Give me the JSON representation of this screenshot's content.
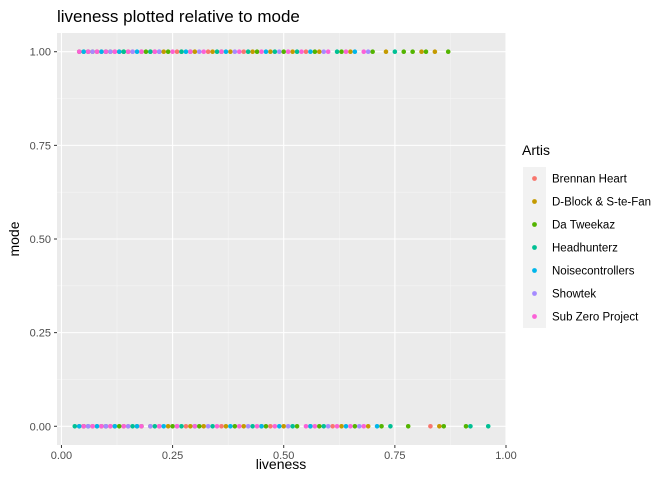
{
  "chart_data": {
    "type": "scatter",
    "title": "liveness plotted relative to mode",
    "xlabel": "liveness",
    "ylabel": "mode",
    "xlim": [
      -0.01,
      1.0
    ],
    "ylim": [
      -0.05,
      1.05
    ],
    "x_ticks": [
      0,
      0.25,
      0.5,
      0.75,
      1.0
    ],
    "x_tick_labels": [
      "0.00",
      "0.25",
      "0.50",
      "0.75",
      "1.00"
    ],
    "y_ticks": [
      0,
      0.25,
      0.5,
      0.75,
      1.0
    ],
    "y_tick_labels": [
      "0.00",
      "0.25",
      "0.50",
      "0.75",
      "1.00"
    ],
    "grid": true,
    "legend": {
      "title": "Artis",
      "position": "right"
    },
    "series": [
      {
        "name": "Brennan Heart",
        "color": "#F8766D",
        "points": [
          [
            0.06,
            1
          ],
          [
            0.09,
            1
          ],
          [
            0.12,
            1
          ],
          [
            0.16,
            1
          ],
          [
            0.21,
            1
          ],
          [
            0.26,
            1
          ],
          [
            0.33,
            1
          ],
          [
            0.41,
            1
          ],
          [
            0.55,
            1
          ],
          [
            0.05,
            0
          ],
          [
            0.08,
            0
          ],
          [
            0.11,
            0
          ],
          [
            0.15,
            0
          ],
          [
            0.22,
            0
          ],
          [
            0.28,
            0
          ],
          [
            0.36,
            0
          ],
          [
            0.47,
            0
          ],
          [
            0.61,
            0
          ],
          [
            0.83,
            0
          ]
        ]
      },
      {
        "name": "D-Block & S-te-Fan",
        "color": "#C49A00",
        "points": [
          [
            0.05,
            1
          ],
          [
            0.08,
            1
          ],
          [
            0.1,
            1
          ],
          [
            0.13,
            1
          ],
          [
            0.15,
            1
          ],
          [
            0.18,
            1
          ],
          [
            0.2,
            1
          ],
          [
            0.23,
            1
          ],
          [
            0.27,
            1
          ],
          [
            0.3,
            1
          ],
          [
            0.34,
            1
          ],
          [
            0.38,
            1
          ],
          [
            0.43,
            1
          ],
          [
            0.47,
            1
          ],
          [
            0.52,
            1
          ],
          [
            0.58,
            1
          ],
          [
            0.65,
            1
          ],
          [
            0.73,
            1
          ],
          [
            0.81,
            1
          ],
          [
            0.84,
            1
          ],
          [
            0.04,
            0
          ],
          [
            0.07,
            0
          ],
          [
            0.1,
            0
          ],
          [
            0.12,
            0
          ],
          [
            0.14,
            0
          ],
          [
            0.17,
            0
          ],
          [
            0.2,
            0
          ],
          [
            0.24,
            0
          ],
          [
            0.29,
            0
          ],
          [
            0.32,
            0
          ],
          [
            0.37,
            0
          ],
          [
            0.41,
            0
          ],
          [
            0.45,
            0
          ],
          [
            0.5,
            0
          ],
          [
            0.56,
            0
          ],
          [
            0.63,
            0
          ],
          [
            0.69,
            0
          ],
          [
            0.85,
            0
          ]
        ]
      },
      {
        "name": "Da Tweekaz",
        "color": "#53B400",
        "points": [
          [
            0.04,
            1
          ],
          [
            0.07,
            1
          ],
          [
            0.11,
            1
          ],
          [
            0.14,
            1
          ],
          [
            0.19,
            1
          ],
          [
            0.24,
            1
          ],
          [
            0.29,
            1
          ],
          [
            0.36,
            1
          ],
          [
            0.44,
            1
          ],
          [
            0.5,
            1
          ],
          [
            0.57,
            1
          ],
          [
            0.63,
            1
          ],
          [
            0.7,
            1
          ],
          [
            0.77,
            1
          ],
          [
            0.79,
            1
          ],
          [
            0.82,
            1
          ],
          [
            0.87,
            1
          ],
          [
            0.05,
            0
          ],
          [
            0.09,
            0
          ],
          [
            0.13,
            0
          ],
          [
            0.18,
            0
          ],
          [
            0.25,
            0
          ],
          [
            0.31,
            0
          ],
          [
            0.39,
            0
          ],
          [
            0.46,
            0
          ],
          [
            0.53,
            0
          ],
          [
            0.58,
            0
          ],
          [
            0.66,
            0
          ],
          [
            0.72,
            0
          ],
          [
            0.78,
            0
          ],
          [
            0.86,
            0
          ],
          [
            0.91,
            0
          ]
        ]
      },
      {
        "name": "Headhunterz",
        "color": "#00C094",
        "points": [
          [
            0.06,
            1
          ],
          [
            0.1,
            1
          ],
          [
            0.14,
            1
          ],
          [
            0.2,
            1
          ],
          [
            0.27,
            1
          ],
          [
            0.35,
            1
          ],
          [
            0.42,
            1
          ],
          [
            0.48,
            1
          ],
          [
            0.53,
            1
          ],
          [
            0.62,
            1
          ],
          [
            0.75,
            1
          ],
          [
            0.03,
            0
          ],
          [
            0.06,
            0
          ],
          [
            0.1,
            0
          ],
          [
            0.16,
            0
          ],
          [
            0.21,
            0
          ],
          [
            0.27,
            0
          ],
          [
            0.34,
            0
          ],
          [
            0.43,
            0
          ],
          [
            0.52,
            0
          ],
          [
            0.59,
            0
          ],
          [
            0.74,
            0
          ],
          [
            0.92,
            0
          ],
          [
            0.96,
            0
          ]
        ]
      },
      {
        "name": "Noisecontrollers",
        "color": "#00B6EB",
        "points": [
          [
            0.05,
            1
          ],
          [
            0.09,
            1
          ],
          [
            0.13,
            1
          ],
          [
            0.17,
            1
          ],
          [
            0.22,
            1
          ],
          [
            0.28,
            1
          ],
          [
            0.37,
            1
          ],
          [
            0.46,
            1
          ],
          [
            0.56,
            1
          ],
          [
            0.66,
            1
          ],
          [
            0.04,
            0
          ],
          [
            0.08,
            0
          ],
          [
            0.12,
            0
          ],
          [
            0.17,
            0
          ],
          [
            0.23,
            0
          ],
          [
            0.3,
            0
          ],
          [
            0.38,
            0
          ],
          [
            0.45,
            0
          ],
          [
            0.49,
            0
          ],
          [
            0.56,
            0
          ],
          [
            0.64,
            0
          ],
          [
            0.71,
            0
          ]
        ]
      },
      {
        "name": "Showtek",
        "color": "#A58AFF",
        "points": [
          [
            0.07,
            1
          ],
          [
            0.11,
            1
          ],
          [
            0.16,
            1
          ],
          [
            0.22,
            1
          ],
          [
            0.31,
            1
          ],
          [
            0.39,
            1
          ],
          [
            0.49,
            1
          ],
          [
            0.59,
            1
          ],
          [
            0.69,
            1
          ],
          [
            0.06,
            0
          ],
          [
            0.1,
            0
          ],
          [
            0.15,
            0
          ],
          [
            0.2,
            0
          ],
          [
            0.26,
            0
          ],
          [
            0.33,
            0
          ],
          [
            0.42,
            0
          ],
          [
            0.51,
            0
          ],
          [
            0.6,
            0
          ],
          [
            0.67,
            0
          ]
        ]
      },
      {
        "name": "Sub Zero Project",
        "color": "#FB61D7",
        "points": [
          [
            0.04,
            1
          ],
          [
            0.06,
            1
          ],
          [
            0.08,
            1
          ],
          [
            0.1,
            1
          ],
          [
            0.12,
            1
          ],
          [
            0.15,
            1
          ],
          [
            0.18,
            1
          ],
          [
            0.21,
            1
          ],
          [
            0.25,
            1
          ],
          [
            0.29,
            1
          ],
          [
            0.32,
            1
          ],
          [
            0.36,
            1
          ],
          [
            0.4,
            1
          ],
          [
            0.45,
            1
          ],
          [
            0.51,
            1
          ],
          [
            0.54,
            1
          ],
          [
            0.6,
            1
          ],
          [
            0.64,
            1
          ],
          [
            0.68,
            1
          ],
          [
            0.05,
            0
          ],
          [
            0.07,
            0
          ],
          [
            0.09,
            0
          ],
          [
            0.11,
            0
          ],
          [
            0.14,
            0
          ],
          [
            0.18,
            0
          ],
          [
            0.22,
            0
          ],
          [
            0.26,
            0
          ],
          [
            0.3,
            0
          ],
          [
            0.35,
            0
          ],
          [
            0.4,
            0
          ],
          [
            0.44,
            0
          ],
          [
            0.48,
            0
          ],
          [
            0.55,
            0
          ],
          [
            0.57,
            0
          ],
          [
            0.62,
            0
          ],
          [
            0.65,
            0
          ],
          [
            0.68,
            0
          ]
        ]
      }
    ]
  }
}
